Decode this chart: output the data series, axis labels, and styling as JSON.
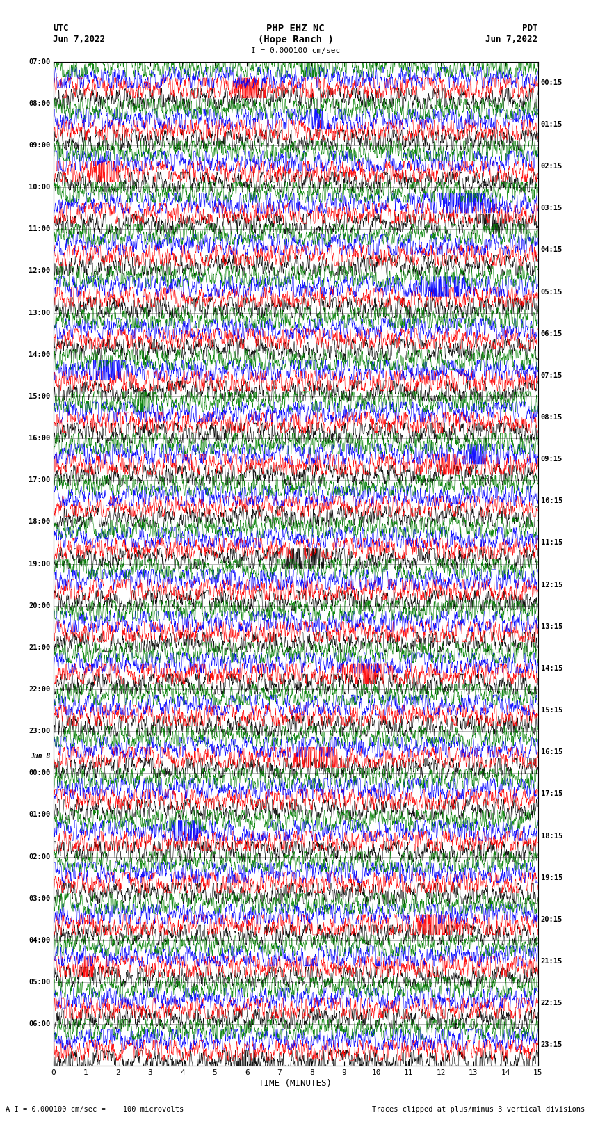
{
  "title_line1": "PHP EHZ NC",
  "title_line2": "(Hope Ranch )",
  "scale_text": "I = 0.000100 cm/sec",
  "utc_label": "UTC",
  "utc_date": "Jun 7,2022",
  "pdt_label": "PDT",
  "pdt_date": "Jun 7,2022",
  "footer_left": "A I = 0.000100 cm/sec =    100 microvolts",
  "footer_right": "Traces clipped at plus/minus 3 vertical divisions",
  "xlabel": "TIME (MINUTES)",
  "left_labels": [
    {
      "text": "07:00",
      "row": 0,
      "is_date": false
    },
    {
      "text": "08:00",
      "row": 1,
      "is_date": false
    },
    {
      "text": "09:00",
      "row": 2,
      "is_date": false
    },
    {
      "text": "10:00",
      "row": 3,
      "is_date": false
    },
    {
      "text": "11:00",
      "row": 4,
      "is_date": false
    },
    {
      "text": "12:00",
      "row": 5,
      "is_date": false
    },
    {
      "text": "13:00",
      "row": 6,
      "is_date": false
    },
    {
      "text": "14:00",
      "row": 7,
      "is_date": false
    },
    {
      "text": "15:00",
      "row": 8,
      "is_date": false
    },
    {
      "text": "16:00",
      "row": 9,
      "is_date": false
    },
    {
      "text": "17:00",
      "row": 10,
      "is_date": false
    },
    {
      "text": "18:00",
      "row": 11,
      "is_date": false
    },
    {
      "text": "19:00",
      "row": 12,
      "is_date": false
    },
    {
      "text": "20:00",
      "row": 13,
      "is_date": false
    },
    {
      "text": "21:00",
      "row": 14,
      "is_date": false
    },
    {
      "text": "22:00",
      "row": 15,
      "is_date": false
    },
    {
      "text": "23:00",
      "row": 16,
      "is_date": false
    },
    {
      "text": "Jun 8",
      "row": 16.6,
      "is_date": true
    },
    {
      "text": "00:00",
      "row": 17,
      "is_date": false
    },
    {
      "text": "01:00",
      "row": 18,
      "is_date": false
    },
    {
      "text": "02:00",
      "row": 19,
      "is_date": false
    },
    {
      "text": "03:00",
      "row": 20,
      "is_date": false
    },
    {
      "text": "04:00",
      "row": 21,
      "is_date": false
    },
    {
      "text": "05:00",
      "row": 22,
      "is_date": false
    },
    {
      "text": "06:00",
      "row": 23,
      "is_date": false
    }
  ],
  "right_labels": [
    "00:15",
    "01:15",
    "02:15",
    "03:15",
    "04:15",
    "05:15",
    "06:15",
    "07:15",
    "08:15",
    "09:15",
    "10:15",
    "11:15",
    "12:15",
    "13:15",
    "14:15",
    "15:15",
    "16:15",
    "17:15",
    "18:15",
    "19:15",
    "20:15",
    "21:15",
    "22:15",
    "23:15"
  ],
  "n_rows": 24,
  "n_traces_per_row": 4,
  "trace_colors": [
    "black",
    "red",
    "blue",
    "green"
  ],
  "bg_color": "white",
  "minutes_per_row": 15,
  "n_points": 2000,
  "fig_width": 8.5,
  "fig_height": 16.13,
  "dpi": 100
}
